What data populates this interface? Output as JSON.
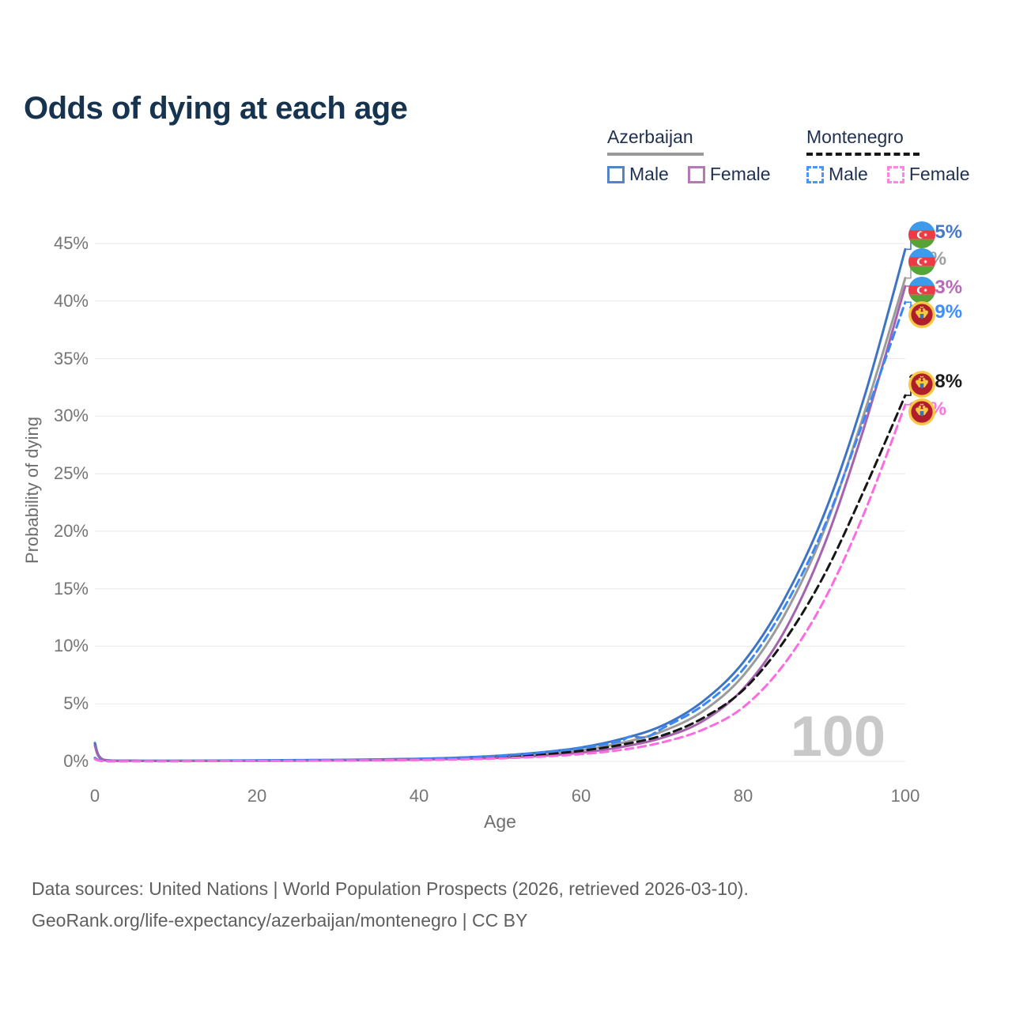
{
  "title": "Odds of dying at each age",
  "legend": {
    "groups": [
      {
        "label": "Azerbaijan",
        "line_style": "solid",
        "underline_color": "#9a9a9a",
        "items": [
          {
            "label": "Male",
            "color": "#5584c6"
          },
          {
            "label": "Female",
            "color": "#b579b5"
          }
        ]
      },
      {
        "label": "Montenegro",
        "line_style": "dashed",
        "underline_color": "#161616",
        "items": [
          {
            "label": "Male",
            "color": "#4d94ff"
          },
          {
            "label": "Female",
            "color": "#ff85e8"
          }
        ]
      }
    ]
  },
  "chart_data": {
    "type": "line",
    "title": "Odds of dying at each age",
    "xlabel": "Age",
    "ylabel": "Probability of dying",
    "xlim": [
      0,
      100
    ],
    "ylim": [
      0,
      45
    ],
    "x_ticks": [
      0,
      20,
      40,
      60,
      80,
      100
    ],
    "y_ticks": [
      0,
      5,
      10,
      15,
      20,
      25,
      30,
      35,
      40,
      45
    ],
    "y_tick_suffix": "%",
    "grid": "horizontal",
    "watermark": "100",
    "series": [
      {
        "name": "Azerbaijan",
        "sex": "both",
        "style": "solid",
        "color": "#9b9b9b",
        "points": [
          [
            0,
            1.48
          ],
          [
            1,
            0.15
          ],
          [
            5,
            0.055
          ],
          [
            10,
            0.045
          ],
          [
            15,
            0.055
          ],
          [
            20,
            0.07
          ],
          [
            25,
            0.09
          ],
          [
            30,
            0.11
          ],
          [
            35,
            0.14
          ],
          [
            40,
            0.19
          ],
          [
            45,
            0.27
          ],
          [
            50,
            0.41
          ],
          [
            55,
            0.63
          ],
          [
            60,
            0.98
          ],
          [
            65,
            1.6
          ],
          [
            70,
            2.6
          ],
          [
            75,
            4.35
          ],
          [
            80,
            7.45
          ],
          [
            85,
            12.6
          ],
          [
            90,
            20.1
          ],
          [
            95,
            30.4
          ],
          [
            100,
            42.0
          ]
        ]
      },
      {
        "name": "Azerbaijan Male",
        "sex": "male",
        "style": "solid",
        "color": "#3e74c4",
        "points": [
          [
            0,
            1.6
          ],
          [
            1,
            0.16
          ],
          [
            5,
            0.06
          ],
          [
            10,
            0.05
          ],
          [
            15,
            0.07
          ],
          [
            20,
            0.09
          ],
          [
            25,
            0.11
          ],
          [
            30,
            0.13
          ],
          [
            35,
            0.17
          ],
          [
            40,
            0.23
          ],
          [
            45,
            0.33
          ],
          [
            50,
            0.5
          ],
          [
            55,
            0.78
          ],
          [
            60,
            1.2
          ],
          [
            65,
            1.95
          ],
          [
            70,
            3.1
          ],
          [
            75,
            5.2
          ],
          [
            80,
            8.6
          ],
          [
            85,
            14.0
          ],
          [
            90,
            21.5
          ],
          [
            95,
            31.8
          ],
          [
            100,
            44.5
          ]
        ]
      },
      {
        "name": "Azerbaijan Female",
        "sex": "female",
        "style": "solid",
        "color": "#a463ae",
        "points": [
          [
            0,
            1.35
          ],
          [
            1,
            0.13
          ],
          [
            5,
            0.05
          ],
          [
            10,
            0.04
          ],
          [
            15,
            0.04
          ],
          [
            20,
            0.05
          ],
          [
            25,
            0.06
          ],
          [
            30,
            0.08
          ],
          [
            35,
            0.11
          ],
          [
            40,
            0.15
          ],
          [
            45,
            0.21
          ],
          [
            50,
            0.31
          ],
          [
            55,
            0.48
          ],
          [
            60,
            0.76
          ],
          [
            65,
            1.25
          ],
          [
            70,
            2.05
          ],
          [
            75,
            3.5
          ],
          [
            80,
            6.3
          ],
          [
            85,
            11.2
          ],
          [
            90,
            18.8
          ],
          [
            95,
            29.2
          ],
          [
            100,
            41.3
          ]
        ]
      },
      {
        "name": "Montenegro",
        "sex": "both",
        "style": "dashed",
        "color": "#161616",
        "points": [
          [
            0,
            0.25
          ],
          [
            1,
            0.04
          ],
          [
            5,
            0.025
          ],
          [
            10,
            0.025
          ],
          [
            15,
            0.04
          ],
          [
            20,
            0.06
          ],
          [
            25,
            0.08
          ],
          [
            30,
            0.1
          ],
          [
            35,
            0.12
          ],
          [
            40,
            0.17
          ],
          [
            45,
            0.25
          ],
          [
            50,
            0.38
          ],
          [
            55,
            0.59
          ],
          [
            60,
            0.92
          ],
          [
            65,
            1.45
          ],
          [
            70,
            2.25
          ],
          [
            75,
            3.75
          ],
          [
            80,
            6.2
          ],
          [
            85,
            10.4
          ],
          [
            90,
            16.2
          ],
          [
            95,
            23.7
          ],
          [
            100,
            31.8
          ]
        ]
      },
      {
        "name": "Montenegro Male",
        "sex": "male",
        "style": "dashed",
        "color": "#3b87f5",
        "points": [
          [
            0,
            0.3
          ],
          [
            1,
            0.05
          ],
          [
            5,
            0.03
          ],
          [
            10,
            0.03
          ],
          [
            15,
            0.05
          ],
          [
            20,
            0.08
          ],
          [
            25,
            0.1
          ],
          [
            30,
            0.12
          ],
          [
            35,
            0.15
          ],
          [
            40,
            0.21
          ],
          [
            45,
            0.31
          ],
          [
            50,
            0.48
          ],
          [
            55,
            0.76
          ],
          [
            60,
            1.15
          ],
          [
            63,
            1.5
          ],
          [
            65,
            1.8
          ],
          [
            66,
            2.15
          ],
          [
            68,
            2.1
          ],
          [
            70,
            2.85
          ],
          [
            75,
            4.85
          ],
          [
            80,
            8.0
          ],
          [
            85,
            13.3
          ],
          [
            90,
            20.4
          ],
          [
            95,
            29.9
          ],
          [
            100,
            39.9
          ]
        ]
      },
      {
        "name": "Montenegro Female",
        "sex": "female",
        "style": "dashed",
        "color": "#fb6ce0",
        "points": [
          [
            0,
            0.2
          ],
          [
            1,
            0.03
          ],
          [
            5,
            0.02
          ],
          [
            10,
            0.02
          ],
          [
            15,
            0.03
          ],
          [
            20,
            0.04
          ],
          [
            25,
            0.05
          ],
          [
            30,
            0.07
          ],
          [
            35,
            0.09
          ],
          [
            40,
            0.12
          ],
          [
            45,
            0.17
          ],
          [
            50,
            0.26
          ],
          [
            55,
            0.41
          ],
          [
            60,
            0.63
          ],
          [
            65,
            1.0
          ],
          [
            70,
            1.65
          ],
          [
            75,
            2.75
          ],
          [
            80,
            4.7
          ],
          [
            85,
            8.4
          ],
          [
            90,
            14.0
          ],
          [
            95,
            21.7
          ],
          [
            100,
            31.0
          ]
        ]
      }
    ],
    "end_labels": [
      {
        "flag": "azerbaijan",
        "text": "44.5%",
        "value": 44.5,
        "color": "#4779c7"
      },
      {
        "flag": "azerbaijan",
        "text": "42%",
        "value": 42.0,
        "color": "#a0a0a0"
      },
      {
        "flag": "azerbaijan",
        "text": "41.3%",
        "value": 41.3,
        "color": "#b66bb8"
      },
      {
        "flag": "montenegro",
        "text": "39.9%",
        "value": 39.9,
        "color": "#3f8efc"
      },
      {
        "flag": "montenegro",
        "text": "31.8%",
        "value": 31.8,
        "color": "#1b1b1b"
      },
      {
        "flag": "montenegro",
        "text": "31%",
        "value": 31.0,
        "color": "#ff72df"
      }
    ]
  },
  "footer": {
    "line1": "Data sources: United Nations | World Population Prospects (2026, retrieved 2026-03-10).",
    "line2": "GeoRank.org/life-expectancy/azerbaijan/montenegro | CC BY"
  }
}
